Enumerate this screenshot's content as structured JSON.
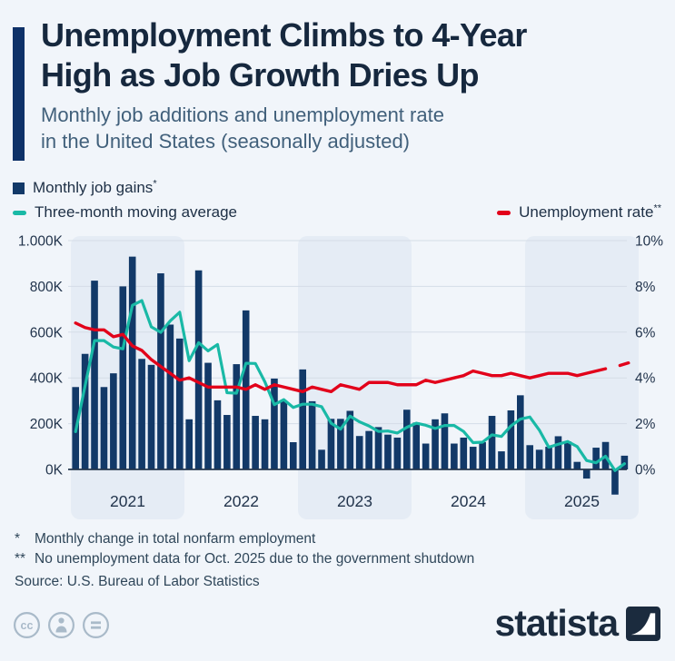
{
  "header": {
    "title_line1": "Unemployment Climbs to 4-Year",
    "title_line2": "High as Job Growth Dries Up",
    "subtitle_line1": "Monthly job additions and unemployment rate",
    "subtitle_line2": "in the United States (seasonally adjusted)"
  },
  "legend": {
    "bars_label": "Monthly job gains",
    "bars_sup": "*",
    "ma_label": "Three-month moving average",
    "rate_label": "Unemployment rate",
    "rate_sup": "**"
  },
  "chart_data": {
    "type": "bar",
    "period": "Jan 2021 - Nov 2025, monthly",
    "x_years": [
      "2021",
      "2022",
      "2023",
      "2024",
      "2025"
    ],
    "shaded_years": [
      "2021",
      "2023",
      "2025"
    ],
    "left_axis": {
      "title": "Monthly job gains",
      "unit": "K",
      "min": -150,
      "max": 1000,
      "ticks": [
        "1.000K",
        "800K",
        "600K",
        "400K",
        "200K",
        "0K"
      ]
    },
    "right_axis": {
      "title": "Unemployment rate",
      "unit": "%",
      "min": 0,
      "max": 10,
      "ticks": [
        "10%",
        "8%",
        "6%",
        "4%",
        "2%",
        "0%"
      ]
    },
    "grid": true,
    "series": [
      {
        "name": "Monthly job gains (thousands)",
        "type": "bar",
        "axis": "left",
        "values": [
          360,
          505,
          825,
          360,
          420,
          800,
          930,
          483,
          457,
          857,
          633,
          572,
          219,
          870,
          466,
          302,
          238,
          460,
          695,
          234,
          219,
          397,
          298,
          119,
          437,
          298,
          86,
          221,
          221,
          256,
          146,
          168,
          185,
          152,
          139,
          261,
          205,
          113,
          219,
          245,
          113,
          139,
          99,
          119,
          234,
          79,
          258,
          324,
          106,
          86,
          99,
          145,
          123,
          33,
          -40,
          95,
          120,
          -110,
          60
        ]
      },
      {
        "name": "Three-month moving average (thousands)",
        "type": "line",
        "axis": "left",
        "values": [
          165,
          365,
          563,
          563,
          535,
          527,
          717,
          738,
          623,
          599,
          649,
          687,
          475,
          554,
          518,
          546,
          335,
          333,
          464,
          463,
          383,
          283,
          305,
          271,
          285,
          285,
          274,
          202,
          176,
          233,
          208,
          190,
          166,
          168,
          159,
          184,
          202,
          193,
          179,
          192,
          192,
          166,
          117,
          119,
          151,
          144,
          190,
          220,
          229,
          172,
          97,
          110,
          122,
          100,
          39,
          29,
          58,
          -5,
          25
        ]
      },
      {
        "name": "Unemployment rate (%)",
        "type": "line",
        "axis": "right",
        "note": "null = no data for Oct. 2025 (government shutdown)",
        "values": [
          6.4,
          6.2,
          6.1,
          6.1,
          5.8,
          5.9,
          5.4,
          5.2,
          4.8,
          4.5,
          4.2,
          3.9,
          4.0,
          3.8,
          3.6,
          3.6,
          3.6,
          3.6,
          3.5,
          3.7,
          3.5,
          3.7,
          3.6,
          3.5,
          3.4,
          3.6,
          3.5,
          3.4,
          3.7,
          3.6,
          3.5,
          3.8,
          3.8,
          3.8,
          3.7,
          3.7,
          3.7,
          3.9,
          3.8,
          3.9,
          4.0,
          4.1,
          4.3,
          4.2,
          4.1,
          4.1,
          4.2,
          4.1,
          4.0,
          4.1,
          4.2,
          4.2,
          4.2,
          4.1,
          4.2,
          4.3,
          4.4,
          null,
          4.6
        ]
      }
    ]
  },
  "footnotes": {
    "note1_mark": "*",
    "note1_text": "Monthly change in total nonfarm employment",
    "note2_mark": "**",
    "note2_text": "No unemployment data for Oct. 2025 due to the government shutdown"
  },
  "source": "Source: U.S. Bureau of Labor Statistics",
  "branding": {
    "wordmark": "statista",
    "license_icons": [
      "cc",
      "attribution",
      "equal"
    ]
  },
  "colors": {
    "background": "#f1f5fa",
    "accent_bar": "#0e3168",
    "title": "#16283e",
    "subtitle": "#41607b",
    "bar": "#123968",
    "moving_average": "#19b9a6",
    "unemployment": "#e2001a",
    "gridline": "#d5dde7",
    "zero_line": "#25374e",
    "year_band": "#e5ecf5",
    "axis_text": "#22344c",
    "footnote": "#2f4659",
    "logo": "#1b2b3e",
    "license_icon": "#a9bac9"
  }
}
